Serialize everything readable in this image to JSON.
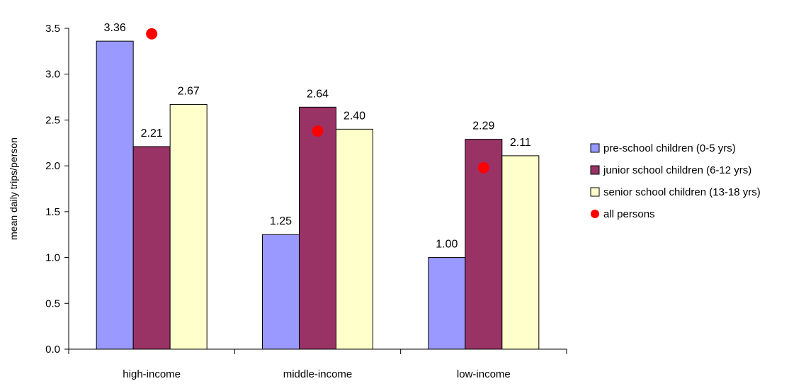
{
  "chart_data": {
    "type": "bar",
    "title": "",
    "xlabel": "",
    "ylabel": "mean daily trips/person",
    "categories": [
      "high-income",
      "middle-income",
      "low-income"
    ],
    "ylim": [
      0,
      3.5
    ],
    "yticks": [
      0.0,
      0.5,
      1.0,
      1.5,
      2.0,
      2.5,
      3.0,
      3.5
    ],
    "ytick_labels": [
      "0.0",
      "0.5",
      "1.0",
      "1.5",
      "2.0",
      "2.5",
      "3.0",
      "3.5"
    ],
    "grid": false,
    "legend_position": "right",
    "series": [
      {
        "name": "pre-school children (0-5 yrs)",
        "values": [
          3.36,
          1.25,
          1.0
        ],
        "labels": [
          "3.36",
          "1.25",
          "1.00"
        ],
        "color": "#9999FF"
      },
      {
        "name": "junior school children (6-12 yrs)",
        "values": [
          2.21,
          2.64,
          2.29
        ],
        "labels": [
          "2.21",
          "2.64",
          "2.29"
        ],
        "color": "#993366"
      },
      {
        "name": "senior school children (13-18 yrs)",
        "values": [
          2.67,
          2.4,
          2.11
        ],
        "labels": [
          "2.67",
          "2.40",
          "2.11"
        ],
        "color": "#FFFFCC"
      }
    ],
    "markers": {
      "name": "all persons",
      "values": [
        3.44,
        2.38,
        1.98
      ],
      "color": "#FF0000"
    }
  }
}
